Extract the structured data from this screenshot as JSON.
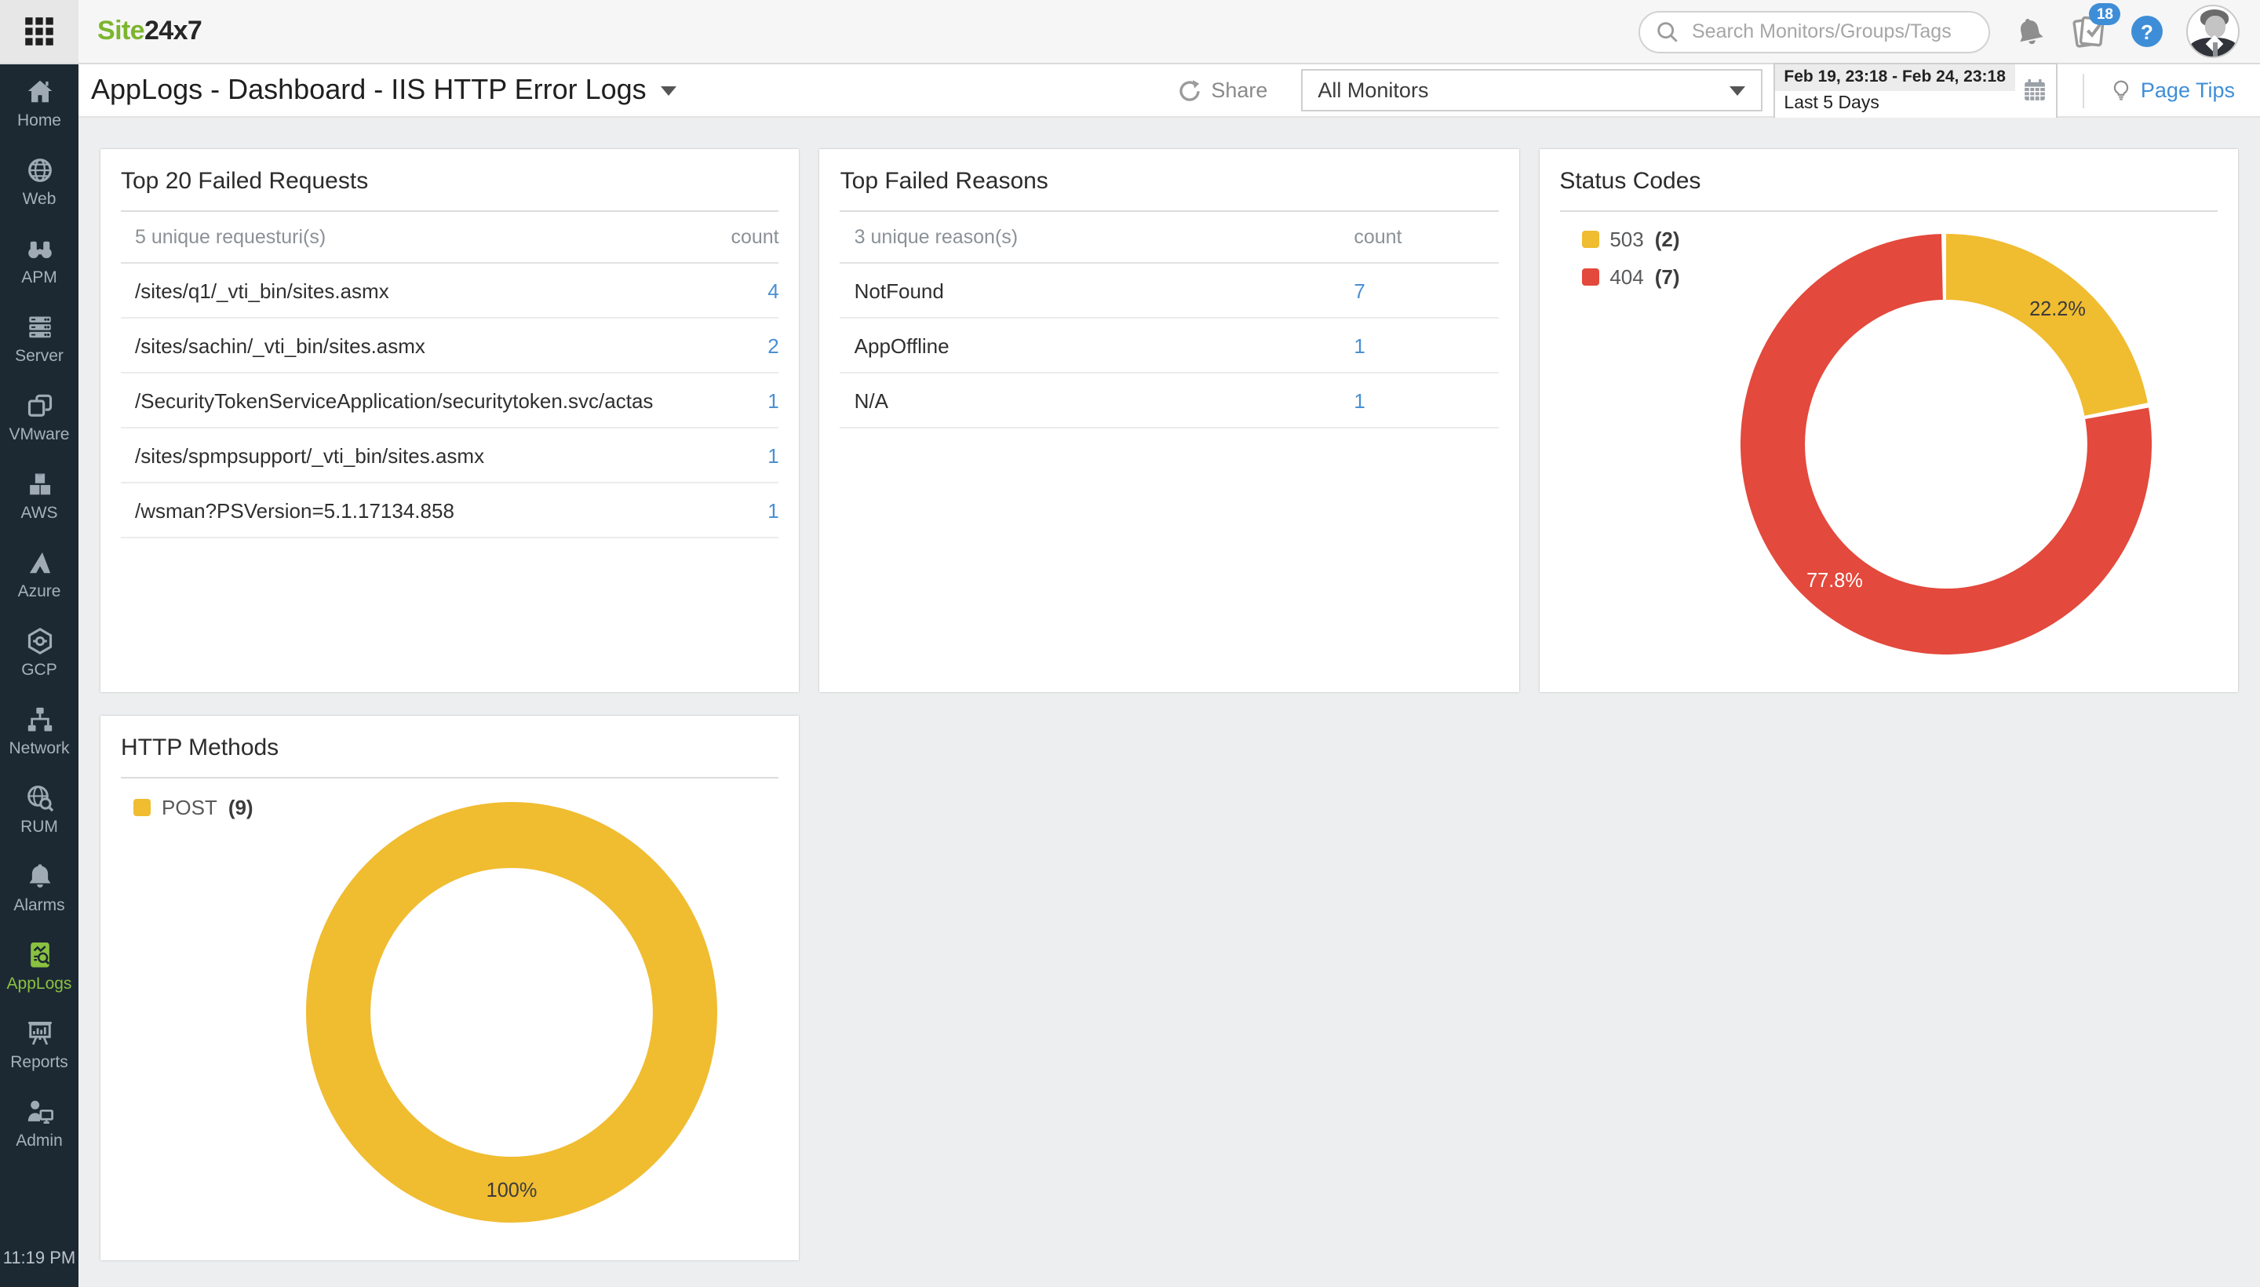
{
  "topbar": {
    "logo": {
      "part1": "Site",
      "part2": "24x7"
    },
    "search_placeholder": "Search Monitors/Groups/Tags",
    "notification_count": "18",
    "help_glyph": "?"
  },
  "header": {
    "title": "AppLogs - Dashboard - IIS HTTP Error Logs",
    "share_label": "Share",
    "monitor_select_value": "All Monitors",
    "date_range": "Feb 19, 23:18 - Feb 24, 23:18",
    "date_preset": "Last 5 Days",
    "page_tips_label": "Page Tips"
  },
  "sidebar": {
    "items": [
      {
        "label": "Home"
      },
      {
        "label": "Web"
      },
      {
        "label": "APM"
      },
      {
        "label": "Server"
      },
      {
        "label": "VMware"
      },
      {
        "label": "AWS"
      },
      {
        "label": "Azure"
      },
      {
        "label": "GCP"
      },
      {
        "label": "Network"
      },
      {
        "label": "RUM"
      },
      {
        "label": "Alarms"
      },
      {
        "label": "AppLogs",
        "active": true
      },
      {
        "label": "Reports"
      },
      {
        "label": "Admin"
      }
    ],
    "time": "11:19 PM"
  },
  "cards": {
    "failed_requests": {
      "title": "Top 20 Failed Requests",
      "header": {
        "col1": "5 unique requesturi(s)",
        "col2": "count"
      },
      "rows": [
        {
          "uri": "/sites/q1/_vti_bin/sites.asmx",
          "count": "4"
        },
        {
          "uri": "/sites/sachin/_vti_bin/sites.asmx",
          "count": "2"
        },
        {
          "uri": "/SecurityTokenServiceApplication/securitytoken.svc/actas",
          "count": "1"
        },
        {
          "uri": "/sites/spmpsupport/_vti_bin/sites.asmx",
          "count": "1"
        },
        {
          "uri": "/wsman?PSVersion=5.1.17134.858",
          "count": "1"
        }
      ]
    },
    "failed_reasons": {
      "title": "Top Failed Reasons",
      "header": {
        "col1": "3 unique reason(s)",
        "col2": "count"
      },
      "rows": [
        {
          "uri": "NotFound",
          "count": "7"
        },
        {
          "uri": "AppOffline",
          "count": "1"
        },
        {
          "uri": "N/A",
          "count": "1"
        }
      ]
    },
    "status_codes": {
      "title": "Status Codes"
    },
    "http_methods": {
      "title": "HTTP Methods"
    }
  },
  "chart_data": [
    {
      "type": "pie",
      "subtype": "donut",
      "title": "Status Codes",
      "legend_position": "top-left",
      "slices": [
        {
          "label": "503",
          "count_label": "(2)",
          "value": 2,
          "percent_label": "22.2%",
          "color": "#F0BC30",
          "percent_label_color": "#3B3B3B"
        },
        {
          "label": "404",
          "count_label": "(7)",
          "value": 7,
          "percent_label": "77.8%",
          "color": "#E3493C",
          "percent_label_color": "#FFFFFF"
        }
      ]
    },
    {
      "type": "pie",
      "subtype": "donut",
      "title": "HTTP Methods",
      "legend_position": "top-left",
      "slices": [
        {
          "label": "POST",
          "count_label": "(9)",
          "value": 9,
          "percent_label": "100%",
          "color": "#F0BC30",
          "percent_label_color": "#3B3B3B"
        }
      ]
    }
  ],
  "colors": {
    "brand_green": "#7CB52E",
    "applogs_green": "#8AC140",
    "link_blue": "#4A90D2",
    "badge_blue": "#3E8ED7",
    "donut_yellow": "#F0BC30",
    "donut_red": "#E3493C",
    "sidebar_bg": "#1C2933"
  }
}
